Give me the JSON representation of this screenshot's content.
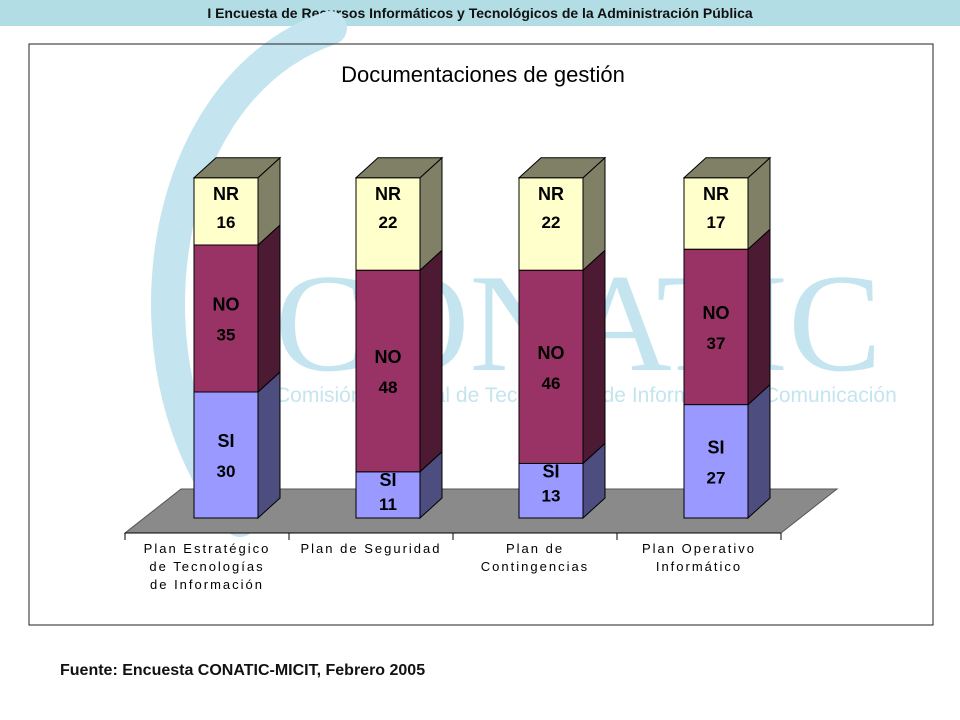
{
  "header": {
    "title": "I Encuesta de Recursos Informáticos y Tecnológicos de la Administración Pública"
  },
  "watermark": {
    "brand": "CONATIC",
    "tagline": "Comisión Nacional de Tecnologías de Información y Comunicación"
  },
  "footer": {
    "source": "Fuente: Encuesta CONATIC-MICIT, Febrero 2005"
  },
  "colors": {
    "si": "#9999ff",
    "si_side": "#4d4d80",
    "no": "#993366",
    "no_side": "#4d1a33",
    "nr": "#ffffcc",
    "nr_side": "#808066",
    "floor": "#8a8a8a",
    "watermark": "#c4e5ef"
  },
  "chart_data": {
    "type": "bar",
    "stacked": true,
    "title": "Documentaciones de gestión",
    "categories": [
      [
        "Plan Estratégico",
        "de Tecnologías",
        "de Información"
      ],
      [
        "Plan de Seguridad"
      ],
      [
        "Plan de",
        "Contingencias"
      ],
      [
        "Plan Operativo",
        "Informático"
      ]
    ],
    "series": [
      {
        "name": "SI",
        "values": [
          30,
          11,
          13,
          27
        ]
      },
      {
        "name": "NO",
        "values": [
          35,
          48,
          46,
          37
        ]
      },
      {
        "name": "NR",
        "values": [
          16,
          22,
          22,
          17
        ]
      }
    ]
  }
}
